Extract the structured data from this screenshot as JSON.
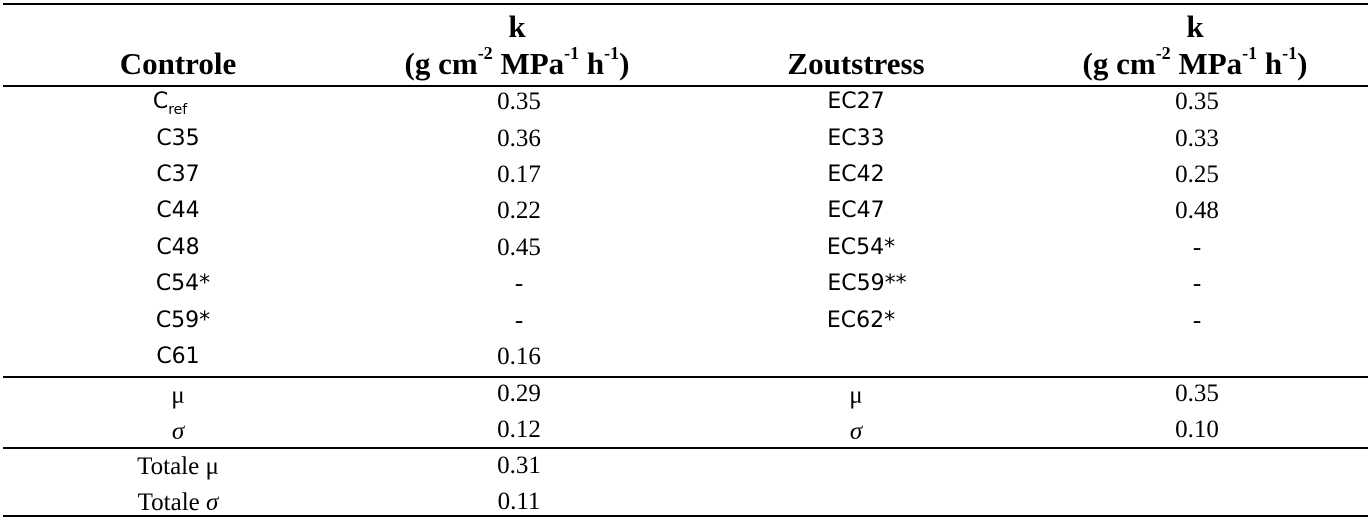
{
  "header": {
    "controle": "Controle",
    "k_symbol": "k",
    "unit_g_cm": "(g cm",
    "unit_exp_cm": "-2",
    "unit_mpa": " MPa",
    "unit_exp_mpa": "-1",
    "unit_h": " h",
    "unit_exp_h": "-1",
    "unit_close": ")",
    "zoutstress": "Zoutstress"
  },
  "controle_rows": [
    {
      "label_main": "C",
      "label_sub": "ref",
      "k": "0.35"
    },
    {
      "label_main": "C35",
      "label_sub": "",
      "k": "0.36"
    },
    {
      "label_main": "C37",
      "label_sub": "",
      "k": "0.17"
    },
    {
      "label_main": "C44",
      "label_sub": "",
      "k": "0.22"
    },
    {
      "label_main": "C48",
      "label_sub": "",
      "k": "0.45"
    },
    {
      "label_main": "C54*",
      "label_sub": "",
      "k": "-"
    },
    {
      "label_main": "C59*",
      "label_sub": "",
      "k": "-"
    },
    {
      "label_main": "C61",
      "label_sub": "",
      "k": "0.16"
    }
  ],
  "zoutstress_rows": [
    {
      "label": "EC27",
      "k": "0.35"
    },
    {
      "label": "EC33",
      "k": "0.33"
    },
    {
      "label": "EC42",
      "k": "0.25"
    },
    {
      "label": "EC47",
      "k": "0.48"
    },
    {
      "label": "EC54*",
      "k": "-"
    },
    {
      "label": "EC59**",
      "k": "-"
    },
    {
      "label": "EC62*",
      "k": "-"
    }
  ],
  "stats": {
    "mu_symbol": "μ",
    "sigma_symbol": "σ",
    "controle_mu": "0.29",
    "controle_sigma": "0.12",
    "zout_mu": "0.35",
    "zout_sigma": "0.10"
  },
  "totals": {
    "mu_label_text": "Totale ",
    "mu_symbol": "μ",
    "mu_value": "0.31",
    "sigma_label_text": "Totale ",
    "sigma_symbol": "σ",
    "sigma_value": "0.11"
  }
}
